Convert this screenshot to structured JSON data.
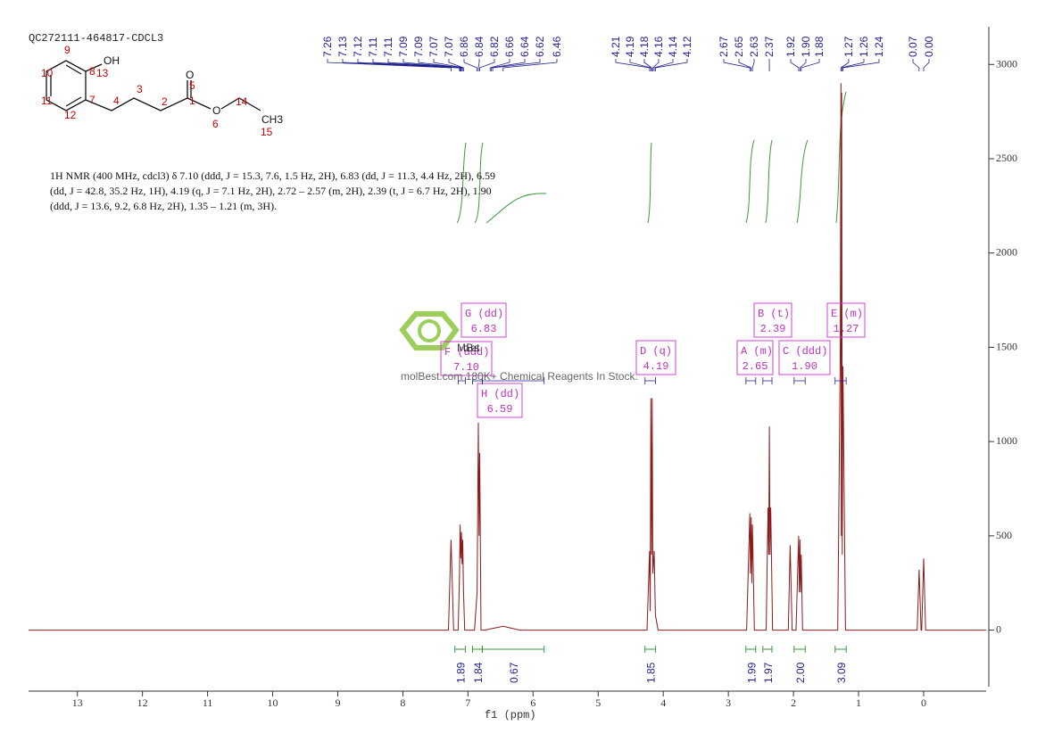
{
  "chart_data": {
    "type": "line",
    "title": "QC272111-464817-CDCL3",
    "x_label": "f1 (ppm)",
    "x": [
      13.75,
      7.3,
      7.26,
      7.22,
      7.15,
      7.13,
      7.12,
      7.11,
      7.1,
      7.09,
      7.08,
      7.07,
      7.05,
      6.9,
      6.86,
      6.84,
      6.83,
      6.82,
      6.8,
      6.75,
      6.46,
      6.2,
      4.25,
      4.21,
      4.2,
      4.19,
      4.18,
      4.17,
      4.16,
      4.14,
      4.12,
      4.08,
      2.72,
      2.67,
      2.66,
      2.65,
      2.64,
      2.63,
      2.6,
      2.42,
      2.39,
      2.38,
      2.37,
      2.36,
      2.35,
      2.32,
      2.08,
      2.05,
      2.02,
      1.96,
      1.92,
      1.91,
      1.9,
      1.89,
      1.88,
      1.86,
      1.32,
      1.28,
      1.27,
      1.265,
      1.26,
      1.25,
      1.24,
      1.2,
      0.1,
      0.07,
      0.04,
      0.03,
      0,
      -0.03,
      -0.96
    ],
    "values": [
      0,
      0,
      480,
      0,
      0,
      300,
      560,
      380,
      520,
      350,
      480,
      220,
      0,
      0,
      200,
      1100,
      500,
      940,
      0,
      0,
      20,
      0,
      0,
      420,
      100,
      1230,
      400,
      1230,
      300,
      420,
      80,
      0,
      0,
      620,
      300,
      600,
      250,
      560,
      0,
      0,
      650,
      400,
      1080,
      400,
      650,
      0,
      0,
      450,
      0,
      0,
      500,
      200,
      480,
      200,
      400,
      0,
      0,
      1500,
      2900,
      500,
      2850,
      400,
      1400,
      0,
      0,
      320,
      0,
      0,
      380,
      0,
      0
    ],
    "color": "#8b1a1a",
    "xlim": [
      13.75,
      -0.96
    ],
    "xticks": [
      13,
      12,
      11,
      10,
      9,
      8,
      7,
      6,
      5,
      4,
      3,
      2,
      1,
      0
    ],
    "ylim": [
      -300,
      3200
    ],
    "yticks": [
      0,
      500,
      1000,
      1500,
      2000,
      2500,
      3000
    ],
    "peak_labels": [
      "7.26",
      "7.13",
      "7.12",
      "7.11",
      "7.11",
      "7.09",
      "7.09",
      "7.07",
      "7.07",
      "6.86",
      "6.84",
      "6.82",
      "6.66",
      "6.64",
      "6.62",
      "6.46",
      "4.21",
      "4.19",
      "4.18",
      "4.16",
      "4.14",
      "4.12",
      "2.67",
      "2.65",
      "2.63",
      "2.37",
      "1.92",
      "1.90",
      "1.88",
      "1.27",
      "1.26",
      "1.24",
      "0.07",
      "0.00"
    ],
    "integrals": [
      {
        "range": [
          7.2,
          7.04
        ],
        "label": "1.89"
      },
      {
        "range": [
          6.93,
          6.78
        ],
        "label": "1.84"
      },
      {
        "range": [
          6.78,
          5.83
        ],
        "label": "0.67"
      },
      {
        "range": [
          4.28,
          4.12
        ],
        "label": "1.85"
      },
      {
        "range": [
          2.73,
          2.58
        ],
        "label": "1.99"
      },
      {
        "range": [
          2.47,
          2.33
        ],
        "label": "1.97"
      },
      {
        "range": [
          1.99,
          1.82
        ],
        "label": "2.00"
      },
      {
        "range": [
          1.36,
          1.19
        ],
        "label": "3.09"
      }
    ],
    "multiplets": [
      {
        "label": "F (ddd)",
        "shift": "7.10",
        "range": [
          7.15,
          7.04
        ]
      },
      {
        "label": "G (dd)",
        "shift": "6.83",
        "range": [
          6.93,
          6.78
        ]
      },
      {
        "label": "H (dd)",
        "shift": "6.59",
        "range": [
          6.78,
          5.83
        ]
      },
      {
        "label": "D (q)",
        "shift": "4.19",
        "range": [
          4.28,
          4.12
        ]
      },
      {
        "label": "A (m)",
        "shift": "2.65",
        "range": [
          2.73,
          2.58
        ]
      },
      {
        "label": "B (t)",
        "shift": "2.39",
        "range": [
          2.47,
          2.33
        ]
      },
      {
        "label": "C (ddd)",
        "shift": "1.90",
        "range": [
          1.99,
          1.82
        ]
      },
      {
        "label": "E (m)",
        "shift": "1.27",
        "range": [
          1.36,
          1.19
        ]
      }
    ],
    "nmr_text": [
      "1H NMR (400 MHz, cdcl3) δ 7.10 (ddd, J = 15.3, 7.6, 1.5 Hz, 2H), 6.83 (dd, J = 11.3, 4.4 Hz, 2H), 6.59",
      "(dd, J = 42.8, 35.2 Hz, 1H), 4.19 (q, J = 7.1 Hz, 2H), 2.72 – 2.57 (m, 2H), 2.39 (t, J = 6.7 Hz, 2H), 1.90",
      "(ddd, J = 13.6, 9.2, 6.8 Hz, 2H), 1.35 – 1.21 (m, 3H)."
    ],
    "structure_labels": [
      "OH",
      "13",
      "9",
      "10",
      "11",
      "12",
      "7",
      "8",
      "4",
      "3",
      "2",
      "1",
      "O",
      "5",
      "O",
      "6",
      "14",
      "CH3",
      "15"
    ],
    "watermark": {
      "brand": "MolBest",
      "tagline": "molBest.com 180K+ Chemical Reagents In Stock."
    }
  }
}
